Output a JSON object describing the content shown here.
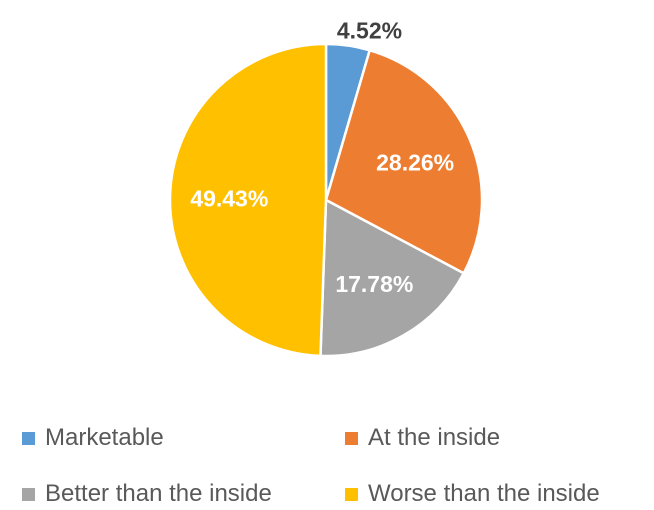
{
  "chart_data": {
    "type": "pie",
    "title": "",
    "categories": [
      "Marketable",
      "At the inside",
      "Better than the inside",
      "Worse than the inside"
    ],
    "values": [
      4.52,
      28.26,
      17.78,
      49.43
    ],
    "data_labels": [
      "4.52%",
      "28.26%",
      "17.78%",
      "49.43%"
    ],
    "colors": [
      "#5B9BD5",
      "#ED7D31",
      "#A5A5A5",
      "#FFC000"
    ],
    "label_colors": [
      "#404040",
      "#ffffff",
      "#ffffff",
      "#ffffff"
    ],
    "start_angle_deg": 0,
    "direction": "clockwise",
    "legend_position": "bottom",
    "legend": [
      "Marketable",
      "At the inside",
      "Better than the inside",
      "Worse than the inside"
    ]
  }
}
